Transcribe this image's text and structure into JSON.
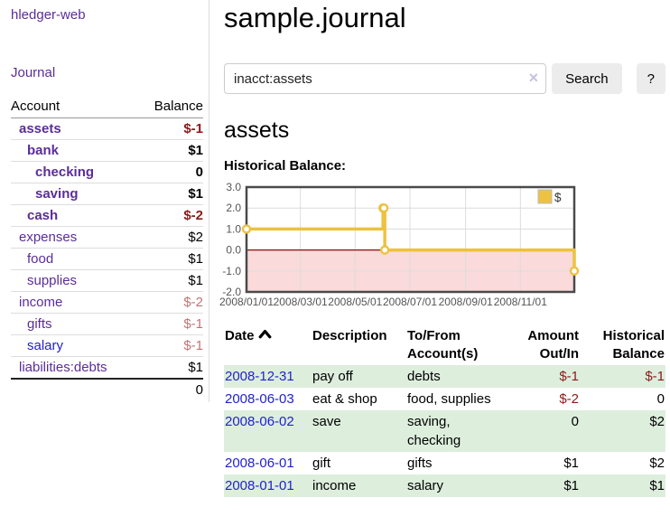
{
  "colors": {
    "purple": "#5b2d9a",
    "blue": "#2222cc",
    "negStrong": "#8b1a1a",
    "negSoft": "#c07575",
    "rowGreen": "#ddeedd",
    "chartGold": "#ECC240",
    "chartPink": "#fadada",
    "chartZeroLine": "#8c0d0d",
    "chartGrid": "#dcdcdc",
    "chartBorder": "#4a4a4a",
    "chartTick": "#555555"
  },
  "sidebar": {
    "app_title": "hledger-web",
    "journal_label": "Journal",
    "table": {
      "headers": [
        "Account",
        "Balance"
      ],
      "rows": [
        {
          "name": "assets",
          "indent": 0,
          "bold": true,
          "name_color": "purple",
          "balance": "$-1",
          "balance_style": "neg-strong"
        },
        {
          "name": "bank",
          "indent": 1,
          "bold": true,
          "name_color": "purple",
          "balance": "$1",
          "balance_style": "normal"
        },
        {
          "name": "checking",
          "indent": 2,
          "bold": true,
          "name_color": "purple",
          "balance": "0",
          "balance_style": "normal"
        },
        {
          "name": "saving",
          "indent": 2,
          "bold": true,
          "name_color": "purple",
          "balance": "$1",
          "balance_style": "normal"
        },
        {
          "name": "cash",
          "indent": 1,
          "bold": true,
          "name_color": "purple",
          "balance": "$-2",
          "balance_style": "neg-strong"
        },
        {
          "name": "expenses",
          "indent": 0,
          "bold": false,
          "name_color": "purple",
          "balance": "$2",
          "balance_style": "normal"
        },
        {
          "name": "food",
          "indent": 1,
          "bold": false,
          "name_color": "purple",
          "balance": "$1",
          "balance_style": "normal"
        },
        {
          "name": "supplies",
          "indent": 1,
          "bold": false,
          "name_color": "purple",
          "balance": "$1",
          "balance_style": "normal"
        },
        {
          "name": "income",
          "indent": 0,
          "bold": false,
          "name_color": "purple",
          "balance": "$-2",
          "balance_style": "neg-soft"
        },
        {
          "name": "gifts",
          "indent": 1,
          "bold": false,
          "name_color": "purple",
          "balance": "$-1",
          "balance_style": "neg-soft"
        },
        {
          "name": "salary",
          "indent": 1,
          "bold": false,
          "name_color": "blue",
          "balance": "$-1",
          "balance_style": "neg-soft"
        },
        {
          "name": "liabilities:debts",
          "indent": 0,
          "bold": false,
          "name_color": "purple",
          "balance": "$1",
          "balance_style": "normal"
        }
      ],
      "total": "0"
    }
  },
  "main": {
    "title": "sample.journal",
    "search": {
      "value": "inacct:assets",
      "clear_icon": "×",
      "button_label": "Search",
      "help_label": "?"
    },
    "account_heading": "assets",
    "register": {
      "headers": [
        {
          "label": "Date",
          "align": "left",
          "sortable": true,
          "sort_dir": "asc"
        },
        {
          "label": "Description",
          "align": "left"
        },
        {
          "label": "To/From Account(s)",
          "align": "left"
        },
        {
          "label": "Amount Out/In",
          "align": "right"
        },
        {
          "label": "Historical Balance",
          "align": "right"
        }
      ],
      "rows": [
        {
          "date": "2008-12-31",
          "description": "pay off",
          "accounts": [
            "debts"
          ],
          "amount": "$-1",
          "amount_style": "neg-strong",
          "balance": "$-1",
          "balance_style": "neg-strong",
          "shaded": true
        },
        {
          "date": "2008-06-03",
          "description": "eat & shop",
          "accounts": [
            "food",
            "supplies"
          ],
          "amount": "$-2",
          "amount_style": "neg-strong",
          "balance": "0",
          "balance_style": "normal",
          "shaded": false
        },
        {
          "date": "2008-06-02",
          "description": "save",
          "accounts": [
            "saving",
            "checking"
          ],
          "amount": "0",
          "amount_style": "normal",
          "balance": "$2",
          "balance_style": "normal",
          "shaded": true
        },
        {
          "date": "2008-06-01",
          "description": "gift",
          "accounts": [
            "gifts"
          ],
          "amount": "$1",
          "amount_style": "normal",
          "balance": "$2",
          "balance_style": "normal",
          "shaded": false
        },
        {
          "date": "2008-01-01",
          "description": "income",
          "accounts": [
            "salary"
          ],
          "amount": "$1",
          "amount_style": "normal",
          "balance": "$1",
          "balance_style": "normal",
          "shaded": true
        }
      ]
    }
  },
  "chart_data": {
    "type": "line",
    "title": "Historical Balance:",
    "step": true,
    "series": [
      {
        "name": "$",
        "points": [
          [
            "2008-01-01",
            1
          ],
          [
            "2008-06-01",
            2
          ],
          [
            "2008-06-02",
            2
          ],
          [
            "2008-06-03",
            0
          ],
          [
            "2008-12-31",
            -1
          ]
        ]
      }
    ],
    "xrange": [
      "2008-01-01",
      "2008-12-31"
    ],
    "ylim": [
      -2,
      3
    ],
    "yticks": [
      3.0,
      2.0,
      1.0,
      0.0,
      -1.0,
      -2.0
    ],
    "xticks": [
      "2008/01/01",
      "2008/03/01",
      "2008/05/01",
      "2008/07/01",
      "2008/09/01",
      "2008/11/01"
    ],
    "legend": {
      "label": "$",
      "position": "top-right"
    },
    "grid": true,
    "negative_region_shaded": true
  }
}
